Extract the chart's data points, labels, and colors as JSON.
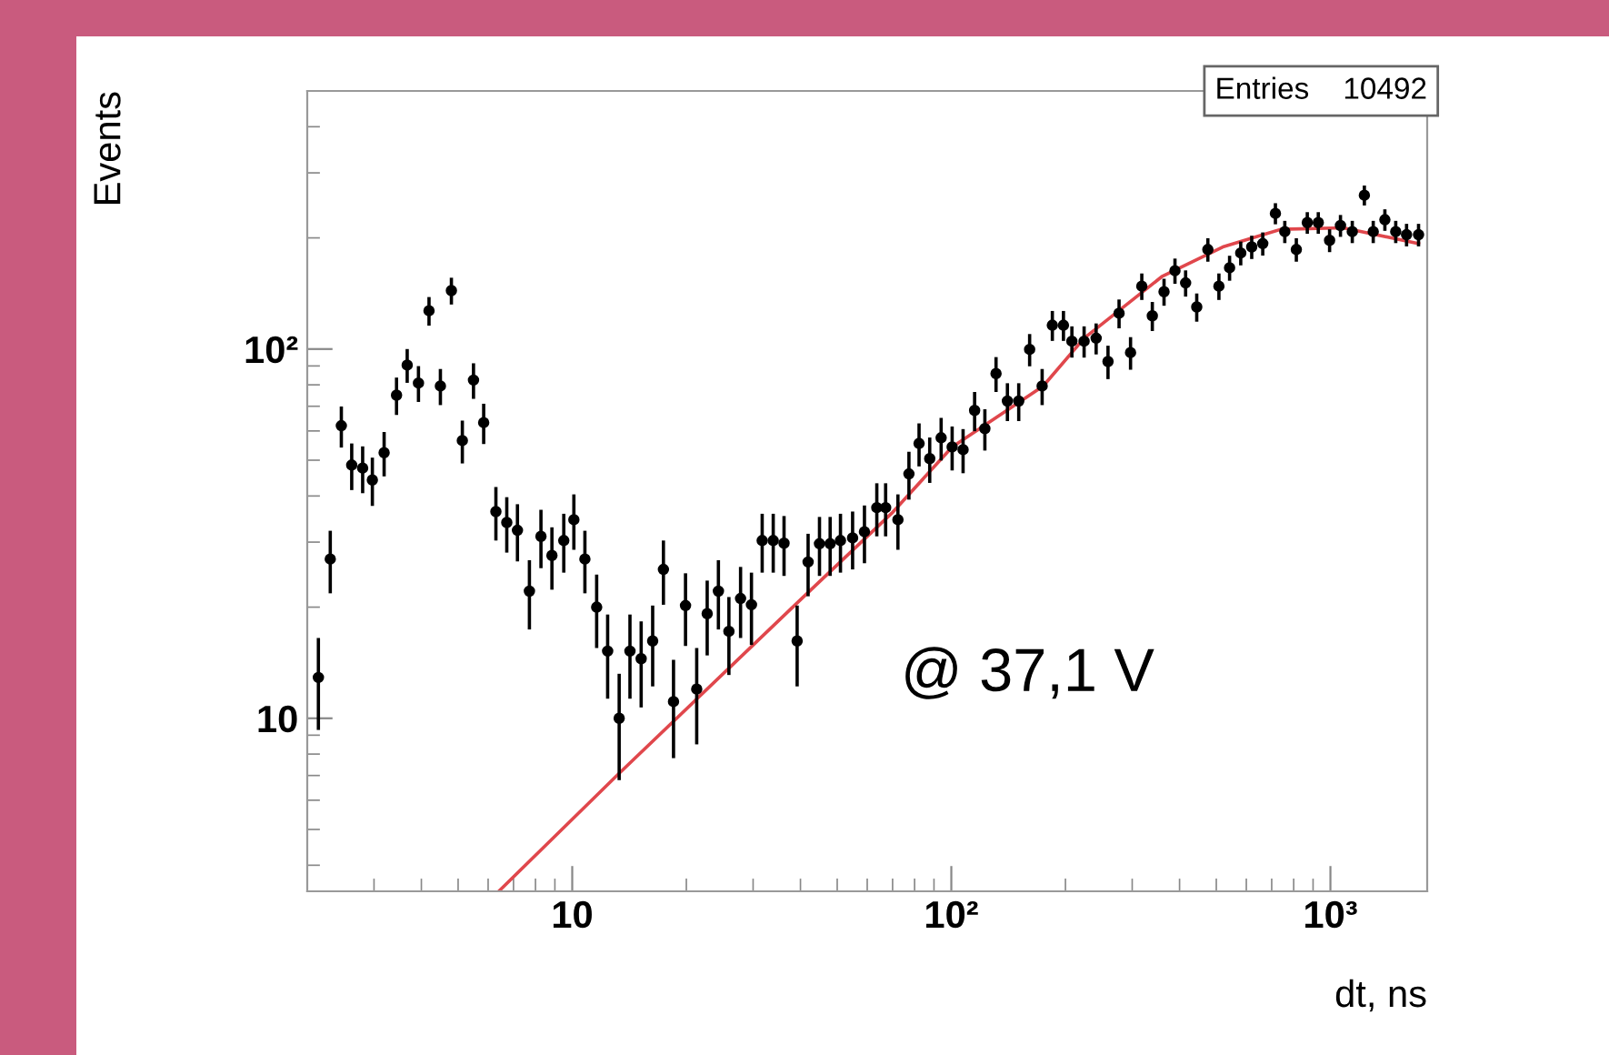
{
  "chart_data": {
    "type": "scatter",
    "xlabel": "dt, ns",
    "ylabel": "Events",
    "log": "xy",
    "xlim": [
      2,
      1800
    ],
    "ylim": [
      3.4,
      500
    ],
    "xticks": [
      {
        "value": 10,
        "label": "10"
      },
      {
        "value": 100,
        "label": "10²"
      },
      {
        "value": 1000,
        "label": "10³"
      }
    ],
    "yticks": [
      {
        "value": 10,
        "label": "10"
      },
      {
        "value": 100,
        "label": "10²"
      }
    ],
    "grid": false,
    "legend": false,
    "marker": "circle",
    "annotations": [
      "Entries    10492",
      "@ 37,1 V"
    ],
    "series": [
      {
        "color": "#000000",
        "x": [
          2.14,
          2.3,
          2.46,
          2.62,
          2.8,
          2.97,
          3.19,
          3.44,
          3.67,
          3.93,
          4.19,
          4.49,
          4.8,
          5.13,
          5.49,
          5.84,
          6.29,
          6.72,
          7.17,
          7.71,
          8.27,
          8.84,
          9.5,
          10.1,
          10.8,
          11.6,
          12.4,
          13.3,
          14.2,
          15.2,
          16.3,
          17.4,
          18.5,
          19.9,
          21.3,
          22.7,
          24.3,
          25.9,
          27.8,
          29.7,
          31.7,
          33.9,
          36.2,
          39.2,
          41.9,
          44.9,
          47.9,
          51.0,
          54.9,
          59.0,
          63.6,
          67.1,
          72.3,
          77.3,
          82.2,
          87.7,
          94.0,
          100.5,
          107.4,
          115.2,
          122.6,
          131.2,
          140.6,
          150.6,
          160.9,
          173.6,
          184.7,
          197.6,
          208,
          224,
          241,
          259,
          277,
          297,
          318,
          339,
          364,
          389,
          415,
          444,
          475,
          508,
          542,
          580,
          620,
          663,
          716,
          758,
          813,
          869,
          929,
          995,
          1063,
          1142,
          1229,
          1297,
          1392,
          1487,
          1588,
          1708
        ],
        "values": [
          12.9,
          27.0,
          62,
          48.5,
          47.6,
          44.2,
          52.4,
          75,
          90.5,
          80.9,
          127,
          79.4,
          144,
          56.5,
          82.4,
          63.2,
          36.3,
          33.9,
          32.3,
          22.1,
          31.1,
          27.6,
          30.3,
          34.5,
          27.0,
          20.0,
          15.2,
          10.0,
          15.2,
          14.5,
          16.2,
          25.3,
          11.1,
          20.2,
          12.0,
          19.2,
          22.1,
          17.2,
          21.1,
          20.3,
          30.3,
          30.3,
          29.8,
          16.2,
          26.5,
          29.7,
          29.7,
          30.3,
          30.8,
          32.0,
          37.2,
          37.2,
          34.5,
          45.9,
          55.5,
          50.5,
          57.5,
          54.3,
          53.4,
          68.2,
          60.9,
          85.8,
          72.3,
          72.3,
          99.8,
          79.4,
          116,
          116,
          105,
          105,
          107,
          92.5,
          125,
          97.8,
          148,
          123,
          143,
          163,
          151,
          130,
          186,
          148,
          166,
          182,
          189,
          193,
          233,
          208,
          186,
          220,
          220,
          197,
          216,
          208,
          261,
          208,
          224,
          208,
          204,
          204
        ],
        "errors": [
          3.6,
          5.2,
          7.9,
          7,
          6.9,
          6.6,
          7.2,
          8.7,
          9.5,
          9,
          11.3,
          8.9,
          12,
          7.5,
          9.1,
          7.9,
          6,
          5.8,
          5.7,
          4.7,
          5.6,
          5.3,
          5.5,
          5.9,
          5.2,
          4.5,
          3.9,
          3.2,
          3.9,
          3.8,
          4,
          5,
          3.3,
          4.5,
          3.5,
          4.4,
          4.7,
          4.1,
          4.6,
          4.5,
          5.5,
          5.5,
          5.5,
          4,
          5.1,
          5.4,
          5.4,
          5.5,
          5.5,
          5.7,
          6.1,
          6.1,
          5.9,
          6.8,
          7.4,
          7.1,
          7.6,
          7.4,
          7.3,
          8.3,
          7.8,
          9.3,
          8.5,
          8.5,
          10,
          8.9,
          10.8,
          10.8,
          10.2,
          10.2,
          10.3,
          9.6,
          11.2,
          9.9,
          12.2,
          11.1,
          12,
          12.8,
          12.3,
          11.4,
          13.6,
          12.2,
          12.9,
          13.5,
          13.7,
          13.9,
          15.3,
          14.4,
          13.6,
          14.8,
          14.8,
          14,
          14.7,
          14.4,
          16.2,
          14.4,
          15,
          14.4,
          14.3,
          14.3
        ]
      },
      {
        "type": "line",
        "color": "#e0474c",
        "marker": "none",
        "x": [
          6.4,
          13.3,
          40.3,
          69.6,
          100.5,
          174.7,
          224,
          359,
          520,
          740,
          1080,
          1708
        ],
        "values": [
          3.4,
          7.1,
          21.1,
          35.9,
          54.3,
          79.4,
          107,
          157,
          189,
          211,
          213,
          193
        ]
      }
    ]
  }
}
